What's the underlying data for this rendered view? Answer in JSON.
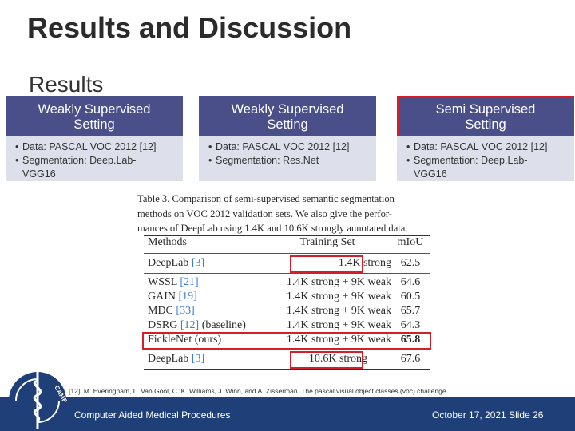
{
  "slide": {
    "title": "Results and Discussion",
    "subtitle": "Results"
  },
  "columns": [
    {
      "head_l1": "Weakly Supervised",
      "head_l2": "Setting",
      "items": [
        "Data: PASCAL VOC 2012 [12]",
        "Segmentation: Deep.Lab-",
        "VGG16"
      ]
    },
    {
      "head_l1": "Weakly Supervised",
      "head_l2": "Setting",
      "items": [
        "Data: PASCAL VOC 2012 [12]",
        "Segmentation: Res.Net"
      ]
    },
    {
      "head_l1": "Semi Supervised",
      "head_l2": "Setting",
      "items": [
        "Data: PASCAL VOC 2012 [12]",
        "Segmentation: Deep.Lab-",
        "VGG16"
      ]
    }
  ],
  "paper": {
    "caption_l1": "Table 3. Comparison of semi-supervised semantic segmentation",
    "caption_l2": "methods on VOC 2012 validation sets. We also give the perfor-",
    "caption_l3": "mances of DeepLab using 1.4K and 10.6K strongly annotated data.",
    "headers": [
      "Methods",
      "Training Set",
      "mIoU"
    ],
    "rows": [
      {
        "method": "DeepLab",
        "cite": "[3]",
        "note": "",
        "train": "1.4K strong",
        "miou": "62.5"
      },
      {
        "method": "WSSL",
        "cite": "[21]",
        "note": "",
        "train": "1.4K strong + 9K weak",
        "miou": "64.6"
      },
      {
        "method": "GAIN",
        "cite": "[19]",
        "note": "",
        "train": "1.4K strong + 9K weak",
        "miou": "60.5"
      },
      {
        "method": "MDC",
        "cite": "[33]",
        "note": "",
        "train": "1.4K strong + 9K weak",
        "miou": "65.7"
      },
      {
        "method": "DSRG",
        "cite": "[12]",
        "note": "(baseline)",
        "train": "1.4K strong + 9K weak",
        "miou": "64.3"
      },
      {
        "method": "FickleNet (ours)",
        "cite": "",
        "note": "",
        "train": "1.4K strong + 9K weak",
        "miou": "65.8"
      },
      {
        "method": "DeepLab",
        "cite": "[3]",
        "note": "",
        "train": "10.6K strong",
        "miou": "67.6"
      }
    ]
  },
  "reference": "[12]: M. Everingham, L. Van Gool, C. K. Williams, J. Winn, and A. Zisserman. The pascal visual object classes (voc) challenge",
  "footer": {
    "left": "Computer Aided Medical Procedures",
    "right": "October 17, 2021  Slide 26",
    "logo_text": "CAMP",
    "bar_color": "#1f3f78"
  },
  "colors": {
    "header_bg": "#4a4f8a",
    "body_bg": "#dde0ea",
    "highlight": "#d21f2a",
    "cite": "#3a7ed1"
  }
}
